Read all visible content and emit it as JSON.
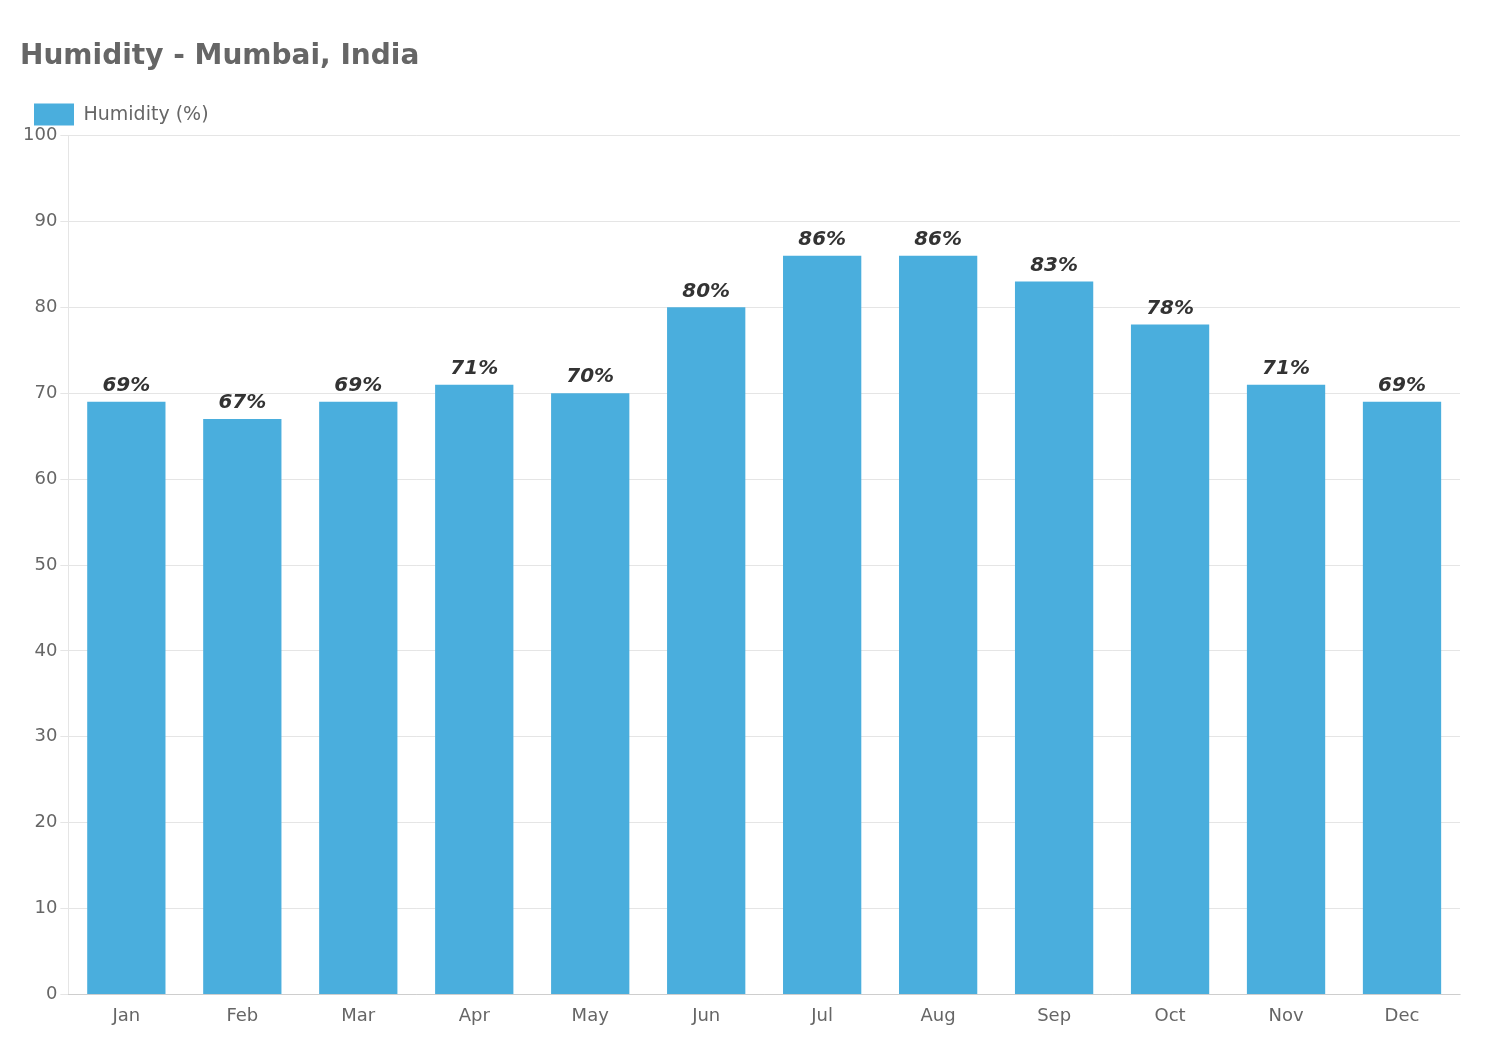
{
  "chart_data": {
    "type": "bar",
    "title": "Humidity - Mumbai, India",
    "categories": [
      "Jan",
      "Feb",
      "Mar",
      "Apr",
      "May",
      "Jun",
      "Jul",
      "Aug",
      "Sep",
      "Oct",
      "Nov",
      "Dec"
    ],
    "series": [
      {
        "name": "Humidity (%)",
        "color": "#4aaedd",
        "values": [
          69,
          67,
          69,
          71,
          70,
          80,
          86,
          86,
          83,
          78,
          71,
          69
        ],
        "value_labels": [
          "69%",
          "67%",
          "69%",
          "71%",
          "70%",
          "80%",
          "86%",
          "86%",
          "83%",
          "78%",
          "71%",
          "69%"
        ]
      }
    ],
    "ylim": [
      0,
      100
    ],
    "yticks": [
      0,
      10,
      20,
      30,
      40,
      50,
      60,
      70,
      80,
      90,
      100
    ],
    "grid": true,
    "legend": "upper left",
    "data_labels": true
  }
}
